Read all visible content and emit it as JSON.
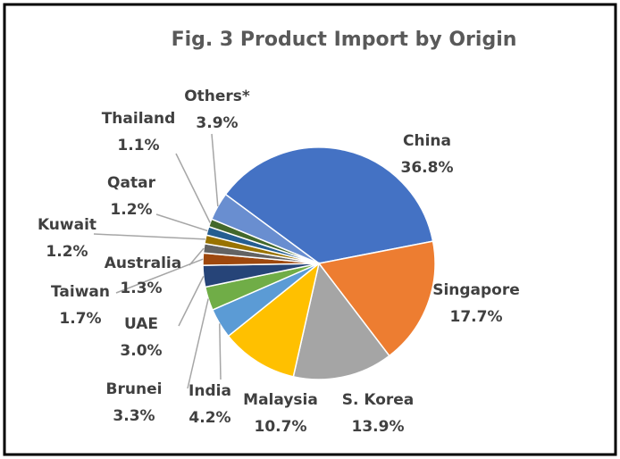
{
  "chart_data": {
    "type": "pie",
    "title": "Fig. 3 Product Import by Origin",
    "categories": [
      "China",
      "Singapore",
      "S. Korea",
      "Malaysia",
      "India",
      "Brunei",
      "UAE",
      "Taiwan",
      "Australia",
      "Kuwait",
      "Qatar",
      "Thailand",
      "Others*"
    ],
    "values": [
      36.8,
      17.7,
      13.9,
      10.7,
      4.2,
      3.3,
      3.0,
      1.7,
      1.3,
      1.2,
      1.2,
      1.1,
      3.9
    ],
    "value_labels": [
      "36.8%",
      "17.7%",
      "13.9%",
      "10.7%",
      "4.2%",
      "3.3%",
      "3.0%",
      "1.7%",
      "1.3%",
      "1.2%",
      "1.2%",
      "1.1%",
      "3.9%"
    ],
    "colors": [
      "#4472c4",
      "#ed7d31",
      "#a5a5a5",
      "#ffc000",
      "#5b9bd5",
      "#70ad47",
      "#264478",
      "#9e480e",
      "#636363",
      "#997300",
      "#255e91",
      "#43682b",
      "#698ed0"
    ]
  }
}
